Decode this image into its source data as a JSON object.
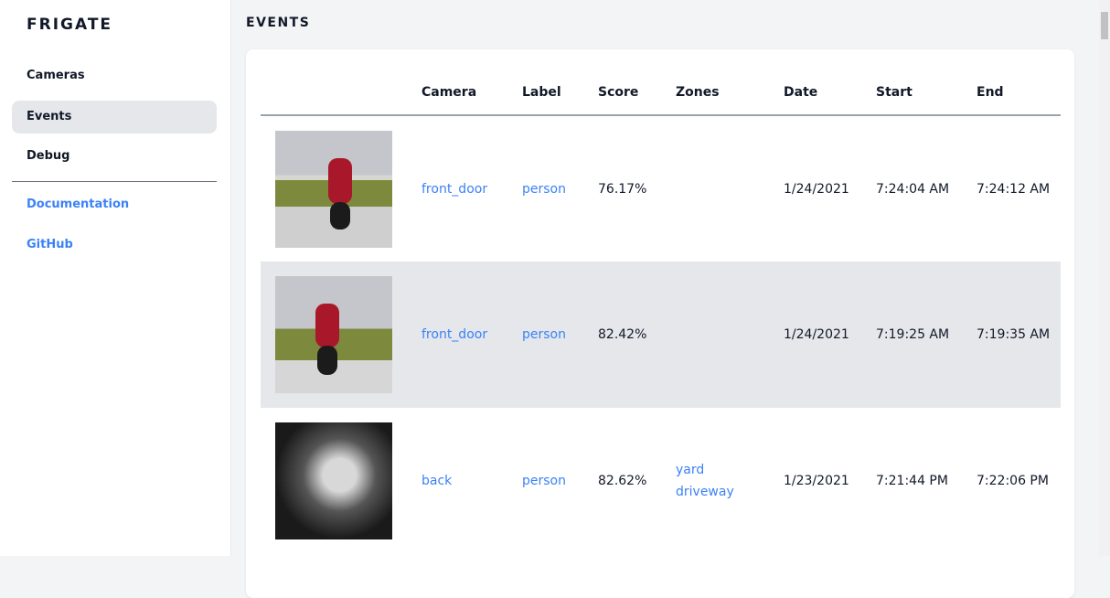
{
  "sidebar": {
    "brand": "FRIGATE",
    "items": [
      {
        "label": "Cameras"
      },
      {
        "label": "Events",
        "active": true
      },
      {
        "label": "Debug"
      }
    ],
    "links": [
      {
        "label": "Documentation"
      },
      {
        "label": "GitHub"
      }
    ]
  },
  "main": {
    "title": "EVENTS"
  },
  "table": {
    "headers": [
      "",
      "Camera",
      "Label",
      "Score",
      "Zones",
      "Date",
      "Start",
      "End"
    ],
    "rows": [
      {
        "camera": "front_door",
        "label": "person",
        "score": "76.17%",
        "zones": [],
        "date": "1/24/2021",
        "start": "7:24:04 AM",
        "end": "7:24:12 AM"
      },
      {
        "camera": "front_door",
        "label": "person",
        "score": "82.42%",
        "zones": [],
        "date": "1/24/2021",
        "start": "7:19:25 AM",
        "end": "7:19:35 AM"
      },
      {
        "camera": "back",
        "label": "person",
        "score": "82.62%",
        "zones": [
          "yard",
          "driveway"
        ],
        "date": "1/23/2021",
        "start": "7:21:44 PM",
        "end": "7:22:06 PM"
      }
    ]
  },
  "colors": {
    "accent": "#3b82f6",
    "active_bg": "#e5e7eb",
    "page_bg": "#f3f4f6"
  }
}
